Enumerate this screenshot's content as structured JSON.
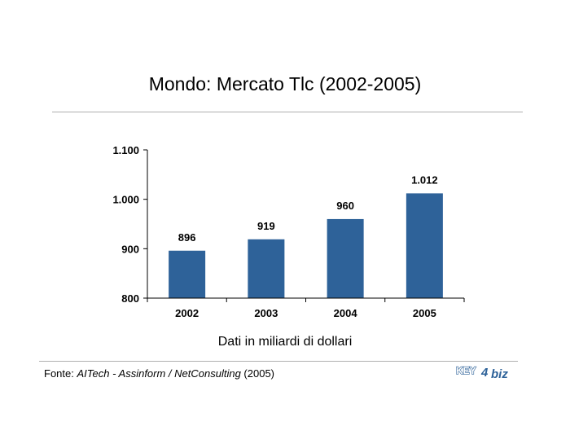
{
  "title": "Mondo: Mercato Tlc (2002-2005)",
  "subtitle": "Dati in miliardi di dollari",
  "source": {
    "prefix": "Fonte: ",
    "italic": "AITech - Assinform / NetConsulting",
    "suffix": " (2005)"
  },
  "logo": {
    "left": "KEY",
    "digit": "4",
    "right": "biz"
  },
  "chart_data": {
    "type": "bar",
    "categories": [
      "2002",
      "2003",
      "2004",
      "2005"
    ],
    "values": [
      896,
      919,
      960,
      1012
    ],
    "value_labels": [
      "896",
      "919",
      "960",
      "1.012"
    ],
    "ylim": [
      800,
      1100
    ],
    "yticks": [
      800,
      900,
      1000,
      1100
    ],
    "ytick_labels": [
      "800",
      "900",
      "1.000",
      "1.100"
    ],
    "grid": false,
    "legend": "none",
    "bar_color": "#2e6299"
  }
}
